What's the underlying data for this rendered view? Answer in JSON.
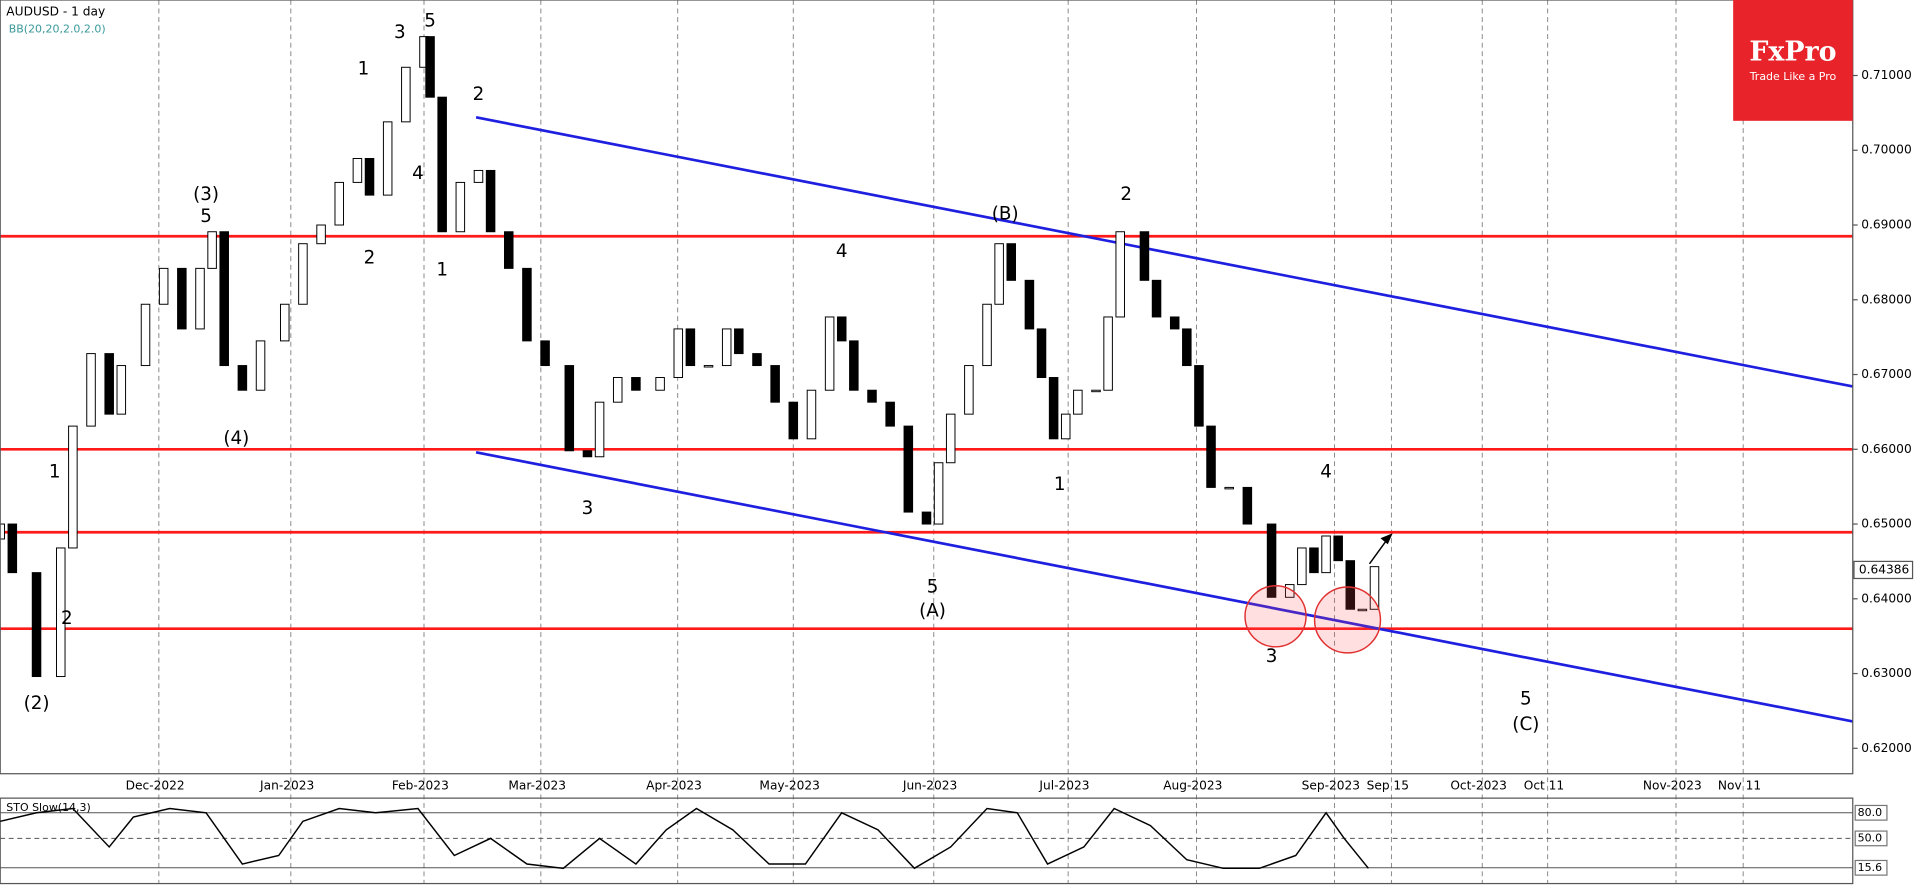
{
  "chart_data": {
    "type": "candlestick",
    "title": "AUDUSD - 1 day",
    "subtitle": "BB(20,20,2.0,2.0)",
    "brand": "FxPro",
    "slogan": "Trade Like a Pro",
    "x": [
      0,
      2,
      6,
      10,
      12,
      15,
      18,
      20,
      24,
      27,
      30,
      33,
      35,
      37,
      40,
      43,
      47,
      50,
      53,
      56,
      59,
      61,
      64,
      67,
      70,
      71,
      73,
      76,
      79,
      81,
      84,
      87,
      90,
      94,
      97,
      99,
      102,
      105,
      109,
      112,
      114,
      117,
      120,
      122,
      125,
      128,
      131,
      134,
      137,
      139,
      141,
      144,
      147,
      150,
      153,
      155,
      157,
      160,
      163,
      165,
      167,
      170,
      172,
      174,
      176,
      178,
      181,
      183,
      185,
      189,
      191,
      194,
      196,
      198,
      200,
      203,
      206,
      210,
      213,
      215,
      217,
      219,
      221,
      223,
      225,
      227
    ],
    "open": [
      0.648,
      0.65,
      0.6435,
      0.6296,
      0.6468,
      0.6631,
      0.6728,
      0.6647,
      0.6712,
      0.6794,
      0.6842,
      0.6761,
      0.6842,
      0.6891,
      0.6712,
      0.6679,
      0.6745,
      0.6794,
      0.6875,
      0.69,
      0.6957,
      0.6989,
      0.694,
      0.7038,
      0.7111,
      0.7152,
      0.7071,
      0.6891,
      0.6957,
      0.6973,
      0.6891,
      0.6842,
      0.6745,
      0.6712,
      0.6598,
      0.659,
      0.6663,
      0.6696,
      0.6679,
      0.6696,
      0.6761,
      0.6712,
      0.6712,
      0.6761,
      0.6728,
      0.6712,
      0.6663,
      0.6614,
      0.6679,
      0.6777,
      0.6745,
      0.6679,
      0.6663,
      0.6631,
      0.6516,
      0.65,
      0.6582,
      0.6647,
      0.6712,
      0.6794,
      0.6875,
      0.6826,
      0.6761,
      0.6696,
      0.6614,
      0.6647,
      0.6679,
      0.6679,
      0.6777,
      0.6891,
      0.6826,
      0.6777,
      0.6761,
      0.6712,
      0.6631,
      0.6549,
      0.6549,
      0.65,
      0.6402,
      0.6419,
      0.6468,
      0.6435,
      0.6484,
      0.6451,
      0.6386,
      0.6386
    ],
    "close": [
      0.65,
      0.6435,
      0.6296,
      0.6468,
      0.6631,
      0.6728,
      0.6647,
      0.6712,
      0.6794,
      0.6842,
      0.6761,
      0.6842,
      0.6891,
      0.6712,
      0.6679,
      0.6745,
      0.6794,
      0.6875,
      0.69,
      0.6957,
      0.6989,
      0.694,
      0.7038,
      0.7111,
      0.7152,
      0.7071,
      0.6891,
      0.6957,
      0.6973,
      0.6891,
      0.6842,
      0.6745,
      0.6712,
      0.6598,
      0.659,
      0.6663,
      0.6696,
      0.6679,
      0.6696,
      0.6761,
      0.6712,
      0.6712,
      0.6761,
      0.6728,
      0.6712,
      0.6663,
      0.6614,
      0.6679,
      0.6777,
      0.6745,
      0.6679,
      0.6663,
      0.6631,
      0.6516,
      0.65,
      0.6582,
      0.6647,
      0.6712,
      0.6794,
      0.6875,
      0.6826,
      0.6761,
      0.6696,
      0.6614,
      0.6647,
      0.6679,
      0.6679,
      0.6777,
      0.6891,
      0.6826,
      0.6777,
      0.6761,
      0.6712,
      0.6631,
      0.6549,
      0.6549,
      0.65,
      0.6402,
      0.6419,
      0.6468,
      0.6435,
      0.6484,
      0.6451,
      0.6386,
      0.6386,
      0.6443
    ],
    "up_color": "#ffffff",
    "down_color": "#000000",
    "xlim": [
      0,
      306
    ],
    "ylim": [
      0.6166,
      0.7201
    ],
    "xticks": [
      {
        "value": 26.2,
        "label": "Dec-2022"
      },
      {
        "value": 48,
        "label": "Jan-2023"
      },
      {
        "value": 70,
        "label": "Feb-2023"
      },
      {
        "value": 89.3,
        "label": "Mar-2023"
      },
      {
        "value": 111.9,
        "label": "Apr-2023"
      },
      {
        "value": 131,
        "label": "May-2023"
      },
      {
        "value": 154.2,
        "label": "Jun-2023"
      },
      {
        "value": 176.4,
        "label": "Jul-2023"
      },
      {
        "value": 197.6,
        "label": "Aug-2023"
      },
      {
        "value": 220.4,
        "label": "Sep-2023"
      },
      {
        "value": 229.8,
        "label": "Sep 15"
      },
      {
        "value": 244.8,
        "label": "Oct-2023"
      },
      {
        "value": 255.6,
        "label": "Oct 11"
      },
      {
        "value": 276.8,
        "label": "Nov-2023"
      },
      {
        "value": 287.9,
        "label": "Nov 11"
      }
    ],
    "yticks": [
      {
        "value": 0.71,
        "label": "0.71000"
      },
      {
        "value": 0.7,
        "label": "0.70000"
      },
      {
        "value": 0.69,
        "label": "0.69000"
      },
      {
        "value": 0.68,
        "label": "0.68000"
      },
      {
        "value": 0.67,
        "label": "0.67000"
      },
      {
        "value": 0.66,
        "label": "0.66000"
      },
      {
        "value": 0.65,
        "label": "0.65000"
      },
      {
        "value": 0.64,
        "label": "0.64000"
      },
      {
        "value": 0.63,
        "label": "0.63000"
      },
      {
        "value": 0.62,
        "label": "0.62000"
      }
    ],
    "last_price": {
      "value": 0.64386,
      "label": "0.64386"
    },
    "hlines": [
      0.6885,
      0.66,
      0.6489,
      0.636
    ],
    "hline_color": "#ff1a1a",
    "channels": [
      [
        [
          78.6,
          0.7044
        ],
        [
          306,
          0.6684
        ]
      ],
      [
        [
          78.6,
          0.6596
        ],
        [
          306,
          0.6236
        ]
      ]
    ],
    "channel_color": "#1f1fe0",
    "annotations": [
      {
        "text": "(3)",
        "x": 34,
        "y": 0.694
      },
      {
        "text": "5",
        "x": 34,
        "y": 0.6911
      },
      {
        "text": "(4)",
        "x": 39,
        "y": 0.6614
      },
      {
        "text": "(2)",
        "x": 6,
        "y": 0.6259
      },
      {
        "text": "2",
        "x": 11,
        "y": 0.6373
      },
      {
        "text": "1",
        "x": 9,
        "y": 0.6569
      },
      {
        "text": "1",
        "x": 60,
        "y": 0.7108
      },
      {
        "text": "3",
        "x": 66,
        "y": 0.7157
      },
      {
        "text": "5",
        "x": 71,
        "y": 0.7172
      },
      {
        "text": "2",
        "x": 79,
        "y": 0.7074
      },
      {
        "text": "4",
        "x": 69,
        "y": 0.6968
      },
      {
        "text": "2",
        "x": 61,
        "y": 0.6855
      },
      {
        "text": "1",
        "x": 73,
        "y": 0.6839
      },
      {
        "text": "3",
        "x": 97,
        "y": 0.652
      },
      {
        "text": "4",
        "x": 139,
        "y": 0.6864
      },
      {
        "text": "5",
        "x": 154,
        "y": 0.6415
      },
      {
        "text": "(A)",
        "x": 154,
        "y": 0.6383
      },
      {
        "text": "(B)",
        "x": 166,
        "y": 0.6914
      },
      {
        "text": "2",
        "x": 186,
        "y": 0.694
      },
      {
        "text": "1",
        "x": 175,
        "y": 0.6552
      },
      {
        "text": "4",
        "x": 219,
        "y": 0.6569
      },
      {
        "text": "3",
        "x": 210,
        "y": 0.6322
      },
      {
        "text": "5",
        "x": 252,
        "y": 0.6265
      },
      {
        "text": "(C)",
        "x": 252,
        "y": 0.6231
      }
    ],
    "oscillator": {
      "title": "STO Slow(14,3)",
      "x": [
        0,
        6,
        12,
        18,
        22,
        28,
        34,
        40,
        46,
        50,
        56,
        62,
        69,
        75,
        81,
        87,
        93,
        99,
        105,
        110,
        115,
        121,
        127,
        133,
        139,
        145,
        151,
        157,
        163,
        168,
        173,
        179,
        184,
        190,
        196,
        202,
        208,
        214,
        219,
        222,
        226
      ],
      "values": [
        70,
        80,
        85,
        40,
        75,
        85,
        80,
        20,
        30,
        70,
        85,
        80,
        85,
        30,
        50,
        20,
        15,
        50,
        20,
        60,
        85,
        60,
        20,
        20,
        80,
        60,
        15,
        40,
        85,
        80,
        20,
        40,
        85,
        65,
        25,
        15,
        15,
        30,
        80,
        50,
        15
      ],
      "color": "#000000",
      "ylim": [
        0,
        100
      ],
      "levels": [
        {
          "value": 80,
          "label": "80.0"
        },
        {
          "value": 50,
          "label": "50.0"
        },
        {
          "value": 15.6,
          "label": "15.6"
        }
      ]
    }
  }
}
